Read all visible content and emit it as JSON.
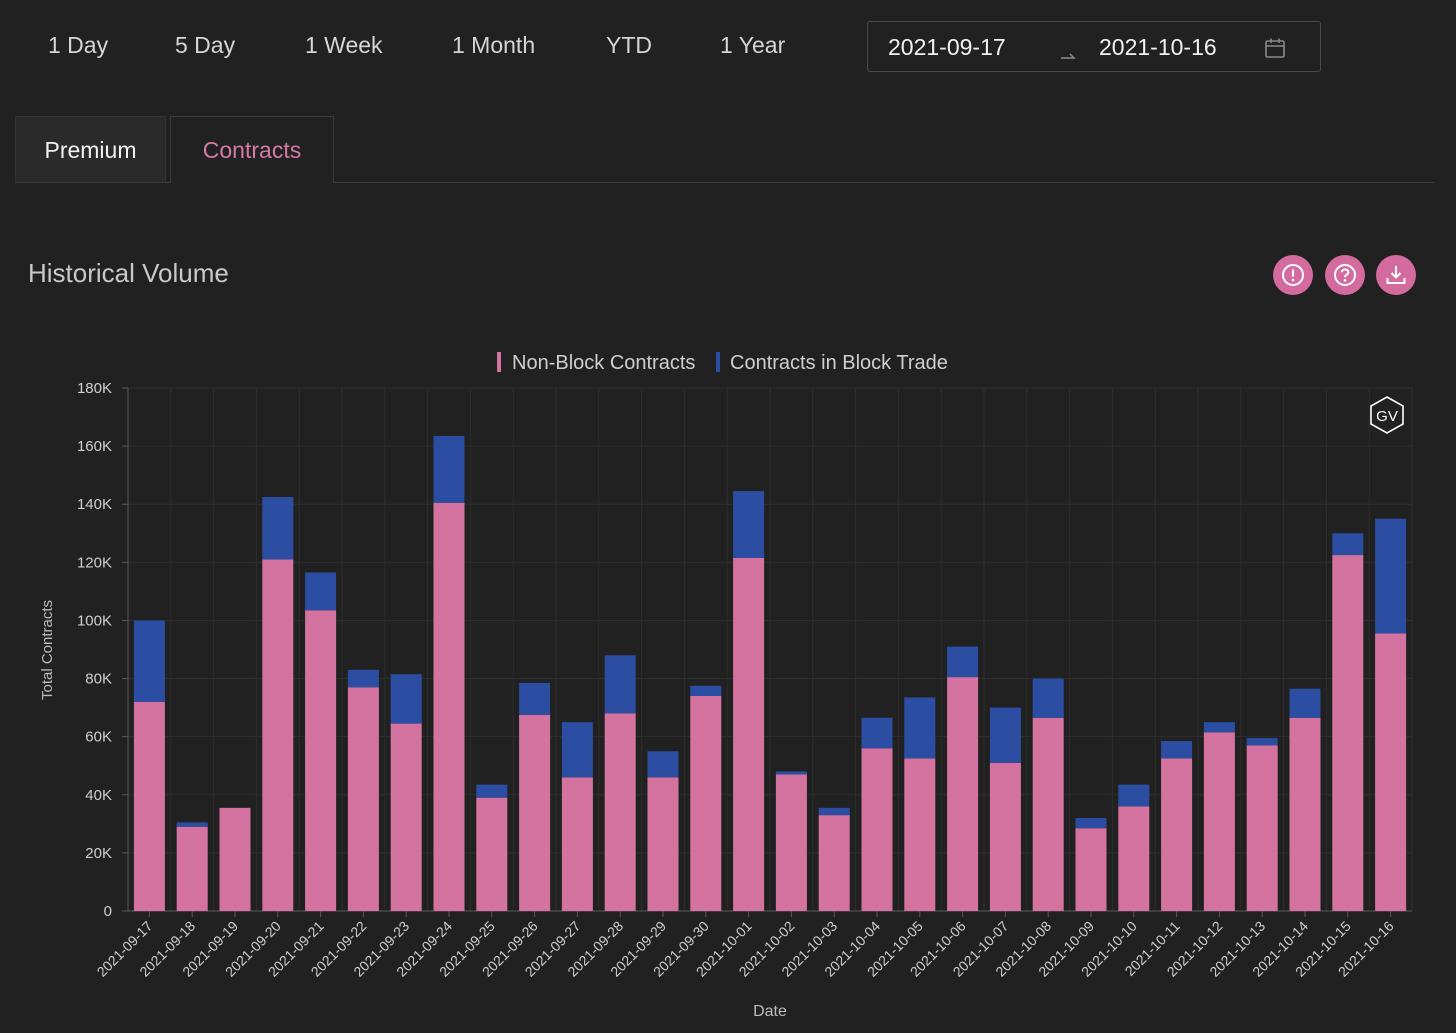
{
  "range_buttons": [
    "1 Day",
    "5 Day",
    "1 Week",
    "1 Month",
    "YTD",
    "1 Year"
  ],
  "date_range": {
    "start": "2021-09-17",
    "end": "2021-10-16"
  },
  "tabs": [
    {
      "label": "Premium",
      "active": false
    },
    {
      "label": "Contracts",
      "active": true
    }
  ],
  "section": {
    "title": "Historical Volume"
  },
  "toolbar_icons": [
    "alert-icon",
    "help-icon",
    "download-icon"
  ],
  "colors": {
    "accent": "#d36b9e",
    "non_block": "#d4739f",
    "block": "#2b4ea3"
  },
  "watermark": "GV",
  "chart_data": {
    "type": "bar",
    "stacked": true,
    "xlabel": "Date",
    "ylabel": "Total Contracts",
    "ylim": [
      0,
      180000
    ],
    "yticks": [
      "0",
      "20K",
      "40K",
      "60K",
      "80K",
      "100K",
      "120K",
      "140K",
      "160K",
      "180K"
    ],
    "legend_position": "top-center",
    "grid": true,
    "categories": [
      "2021-09-17",
      "2021-09-18",
      "2021-09-19",
      "2021-09-20",
      "2021-09-21",
      "2021-09-22",
      "2021-09-23",
      "2021-09-24",
      "2021-09-25",
      "2021-09-26",
      "2021-09-27",
      "2021-09-28",
      "2021-09-29",
      "2021-09-30",
      "2021-10-01",
      "2021-10-02",
      "2021-10-03",
      "2021-10-04",
      "2021-10-05",
      "2021-10-06",
      "2021-10-07",
      "2021-10-08",
      "2021-10-09",
      "2021-10-10",
      "2021-10-11",
      "2021-10-12",
      "2021-10-13",
      "2021-10-14",
      "2021-10-15",
      "2021-10-16"
    ],
    "series": [
      {
        "name": "Non-Block Contracts",
        "color": "#d4739f",
        "values": [
          72000,
          29000,
          35500,
          121000,
          103500,
          77000,
          64500,
          140500,
          39000,
          67500,
          46000,
          68000,
          46000,
          74000,
          121500,
          47000,
          33000,
          56000,
          52500,
          80500,
          51000,
          66500,
          28500,
          36000,
          52500,
          61500,
          57000,
          66500,
          122500,
          95500
        ]
      },
      {
        "name": "Contracts in Block Trade",
        "color": "#2b4ea3",
        "values": [
          28000,
          1500,
          0,
          21500,
          13000,
          6000,
          17000,
          23000,
          4500,
          11000,
          19000,
          20000,
          9000,
          3500,
          23000,
          1000,
          2500,
          10500,
          21000,
          10500,
          19000,
          13500,
          3500,
          7500,
          6000,
          3500,
          2500,
          10000,
          7500,
          39500
        ]
      }
    ]
  }
}
